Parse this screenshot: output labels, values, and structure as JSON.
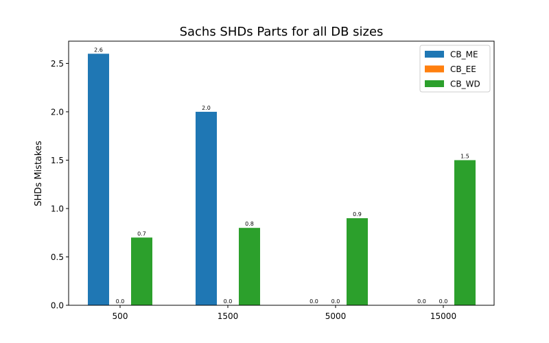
{
  "chart_data": {
    "type": "bar",
    "title": "Sachs SHDs Parts for all DB sizes",
    "xlabel": "",
    "ylabel": "SHDs Mistakes",
    "categories": [
      "500",
      "1500",
      "5000",
      "15000"
    ],
    "ylim": [
      0,
      2.73
    ],
    "yticks": [
      0.0,
      0.5,
      1.0,
      1.5,
      2.0,
      2.5
    ],
    "ytick_labels": [
      "0.0",
      "0.5",
      "1.0",
      "1.5",
      "2.0",
      "2.5"
    ],
    "grid": false,
    "legend_position": "top-right",
    "series": [
      {
        "name": "CB_ME",
        "color": "#1f77b4",
        "values": [
          2.6,
          2.0,
          0.0,
          0.0
        ],
        "labels": [
          "2.6",
          "2.0",
          "0.0",
          "0.0"
        ]
      },
      {
        "name": "CB_EE",
        "color": "#ff7f0e",
        "values": [
          0.0,
          0.0,
          0.0,
          0.0
        ],
        "labels": [
          "0.0",
          "0.0",
          "0.0",
          "0.0"
        ]
      },
      {
        "name": "CB_WD",
        "color": "#2ca02c",
        "values": [
          0.7,
          0.8,
          0.9,
          1.5
        ],
        "labels": [
          "0.7",
          "0.8",
          "0.9",
          "1.5"
        ]
      }
    ]
  }
}
